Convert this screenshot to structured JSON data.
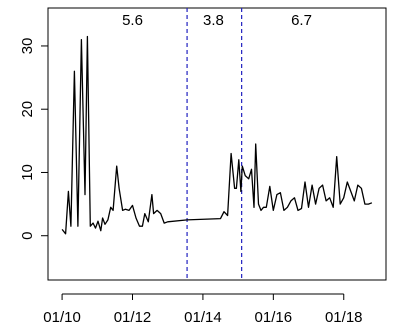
{
  "chart_data": {
    "type": "line",
    "title": "",
    "xlabel": "",
    "ylabel": "",
    "x_tick_labels": [
      "01/10",
      "01/12",
      "01/14",
      "01/16",
      "01/18"
    ],
    "x_tick_values": [
      2010,
      2012,
      2014,
      2016,
      2018
    ],
    "xlim": [
      2009.6,
      2019.2
    ],
    "y_ticks": [
      0,
      10,
      20,
      30
    ],
    "ylim": [
      -7,
      36
    ],
    "grid": false,
    "vlines": [
      {
        "x": 2013.55,
        "style": "dashed",
        "color": "#2020c0"
      },
      {
        "x": 2015.1,
        "style": "dashed",
        "color": "#2020c0"
      }
    ],
    "segment_annotations": [
      {
        "text": "5.6",
        "x": 2012.0
      },
      {
        "text": "3.8",
        "x": 2014.3
      },
      {
        "text": "6.7",
        "x": 2016.8
      }
    ],
    "series": [
      {
        "color": "#000000",
        "x": [
          2010.0,
          2010.1,
          2010.18,
          2010.25,
          2010.35,
          2010.45,
          2010.55,
          2010.65,
          2010.72,
          2010.8,
          2010.88,
          2010.95,
          2011.02,
          2011.1,
          2011.15,
          2011.22,
          2011.3,
          2011.38,
          2011.45,
          2011.55,
          2011.62,
          2011.72,
          2011.8,
          2011.9,
          2012.0,
          2012.1,
          2012.2,
          2012.28,
          2012.35,
          2012.45,
          2012.55,
          2012.6,
          2012.7,
          2012.8,
          2012.9,
          2013.0,
          2013.55,
          2014.5,
          2014.6,
          2014.7,
          2014.8,
          2014.9,
          2014.95,
          2015.02,
          2015.08,
          2015.12,
          2015.2,
          2015.3,
          2015.38,
          2015.45,
          2015.5,
          2015.58,
          2015.65,
          2015.72,
          2015.8,
          2015.9,
          2016.0,
          2016.1,
          2016.2,
          2016.3,
          2016.4,
          2016.5,
          2016.6,
          2016.7,
          2016.8,
          2016.9,
          2017.0,
          2017.1,
          2017.2,
          2017.3,
          2017.4,
          2017.5,
          2017.6,
          2017.7,
          2017.8,
          2017.9,
          2018.0,
          2018.1,
          2018.2,
          2018.3,
          2018.4,
          2018.5,
          2018.6,
          2018.7,
          2018.8
        ],
        "y": [
          1,
          0.3,
          7,
          1.5,
          26,
          1.5,
          31,
          6.5,
          31.5,
          1.5,
          2,
          1.2,
          2.3,
          0.8,
          2.8,
          1.8,
          2.5,
          4.5,
          4,
          11,
          7.5,
          4,
          4.2,
          4,
          4.8,
          2.8,
          1.5,
          1.5,
          3.5,
          2.2,
          6.5,
          3.5,
          4,
          3.5,
          2,
          2.2,
          2.5,
          2.7,
          3.8,
          3.2,
          13,
          7.5,
          7.5,
          12,
          7,
          11,
          9.5,
          9,
          10.5,
          4.5,
          14.5,
          5,
          4,
          4.5,
          4.5,
          7.8,
          4,
          6.5,
          6.8,
          4,
          4.5,
          5.5,
          6,
          4,
          4.3,
          8.5,
          4.5,
          8,
          5,
          7.5,
          8,
          5.5,
          6,
          4.5,
          12.5,
          5,
          6,
          8.5,
          7,
          5.5,
          8,
          7.5,
          5,
          5,
          5.2
        ]
      }
    ]
  }
}
